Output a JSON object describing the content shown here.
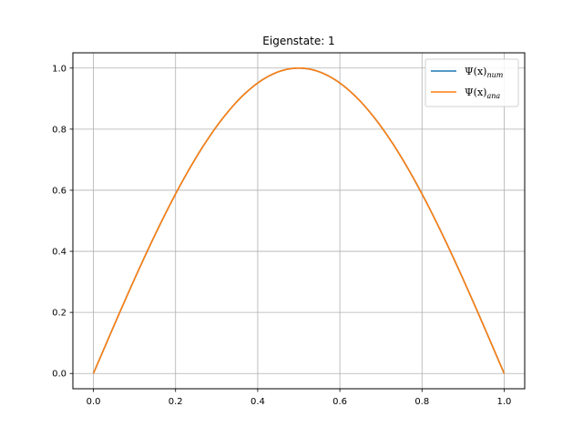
{
  "chart_data": {
    "type": "line",
    "title": "Eigenstate: 1",
    "xlabel": "",
    "ylabel": "",
    "xlim": [
      -0.05,
      1.05
    ],
    "ylim": [
      -0.05,
      1.05
    ],
    "xticks": [
      0.0,
      0.2,
      0.4,
      0.6,
      0.8,
      1.0
    ],
    "yticks": [
      0.0,
      0.2,
      0.4,
      0.6,
      0.8,
      1.0
    ],
    "xtick_labels": [
      "0.0",
      "0.2",
      "0.4",
      "0.6",
      "0.8",
      "1.0"
    ],
    "ytick_labels": [
      "0.0",
      "0.2",
      "0.4",
      "0.6",
      "0.8",
      "1.0"
    ],
    "grid": true,
    "legend_position": "top-right",
    "x": [
      0.0,
      0.05,
      0.1,
      0.15,
      0.2,
      0.25,
      0.3,
      0.35,
      0.4,
      0.45,
      0.5,
      0.55,
      0.6,
      0.65,
      0.7,
      0.75,
      0.8,
      0.85,
      0.9,
      0.95,
      1.0
    ],
    "series": [
      {
        "name_main": "Ψ(x)",
        "name_sub": "num",
        "color": "#1f77b4",
        "values": [
          0.0,
          0.156,
          0.309,
          0.454,
          0.588,
          0.707,
          0.809,
          0.891,
          0.951,
          0.988,
          1.0,
          0.988,
          0.951,
          0.891,
          0.809,
          0.707,
          0.588,
          0.454,
          0.309,
          0.156,
          0.0
        ]
      },
      {
        "name_main": "Ψ(x)",
        "name_sub": "ana",
        "color": "#ff7f0e",
        "values": [
          0.0,
          0.156,
          0.309,
          0.454,
          0.588,
          0.707,
          0.809,
          0.891,
          0.951,
          0.988,
          1.0,
          0.988,
          0.951,
          0.891,
          0.809,
          0.707,
          0.588,
          0.454,
          0.309,
          0.156,
          0.0
        ]
      }
    ]
  }
}
